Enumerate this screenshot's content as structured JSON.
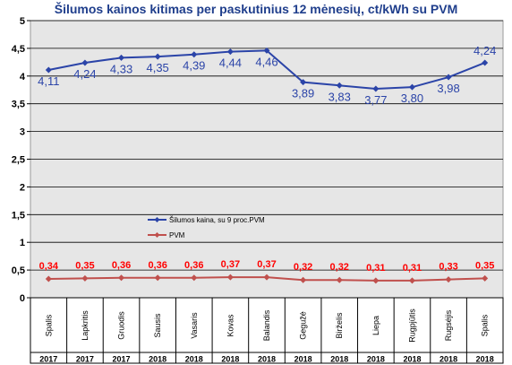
{
  "chart_data": {
    "type": "line",
    "title": "Šilumos kainos kitimas per paskutinius 12 mėnesių, ct/kWh su PVM",
    "categories": [
      "Spalis",
      "Lapkritis",
      "Gruodis",
      "Sausis",
      "Vasaris",
      "Kovas",
      "Balandis",
      "Gegužė",
      "Birželis",
      "Liepa",
      "Rugpjūtis",
      "Rugsėjis",
      "Spalis"
    ],
    "years": [
      "2017",
      "2017",
      "2017",
      "2018",
      "2018",
      "2018",
      "2018",
      "2018",
      "2018",
      "2018",
      "2018",
      "2018",
      "2018"
    ],
    "ylim": [
      0,
      5
    ],
    "yticks": [
      "0",
      "0,5",
      "1",
      "1,5",
      "2",
      "2,5",
      "3",
      "3,5",
      "4",
      "4,5",
      "5"
    ],
    "grid": true,
    "legend_position": "center-left",
    "series": [
      {
        "name": "Šilumos kaina, su 9 proc.PVM",
        "color": "#2b44a8",
        "values": [
          4.11,
          4.24,
          4.33,
          4.35,
          4.39,
          4.44,
          4.46,
          3.89,
          3.83,
          3.77,
          3.8,
          3.98,
          4.24
        ],
        "labels": [
          "4,11",
          "4,24",
          "4,33",
          "4,35",
          "4,39",
          "4,44",
          "4,46",
          "3,89",
          "3,83",
          "3,77",
          "3,80",
          "3,98",
          "4,24"
        ]
      },
      {
        "name": "PVM",
        "color": "#c0504d",
        "label_color": "#ff0000",
        "values": [
          0.34,
          0.35,
          0.36,
          0.36,
          0.36,
          0.37,
          0.37,
          0.32,
          0.32,
          0.31,
          0.31,
          0.33,
          0.35
        ],
        "labels": [
          "0,34",
          "0,35",
          "0,36",
          "0,36",
          "0,36",
          "0,37",
          "0,37",
          "0,32",
          "0,32",
          "0,31",
          "0,31",
          "0,33",
          "0,35"
        ]
      }
    ],
    "colors": {
      "plot_background": "#e6e6e6",
      "title": "#1f3e8c",
      "label_blue": "#2b44a8"
    }
  }
}
